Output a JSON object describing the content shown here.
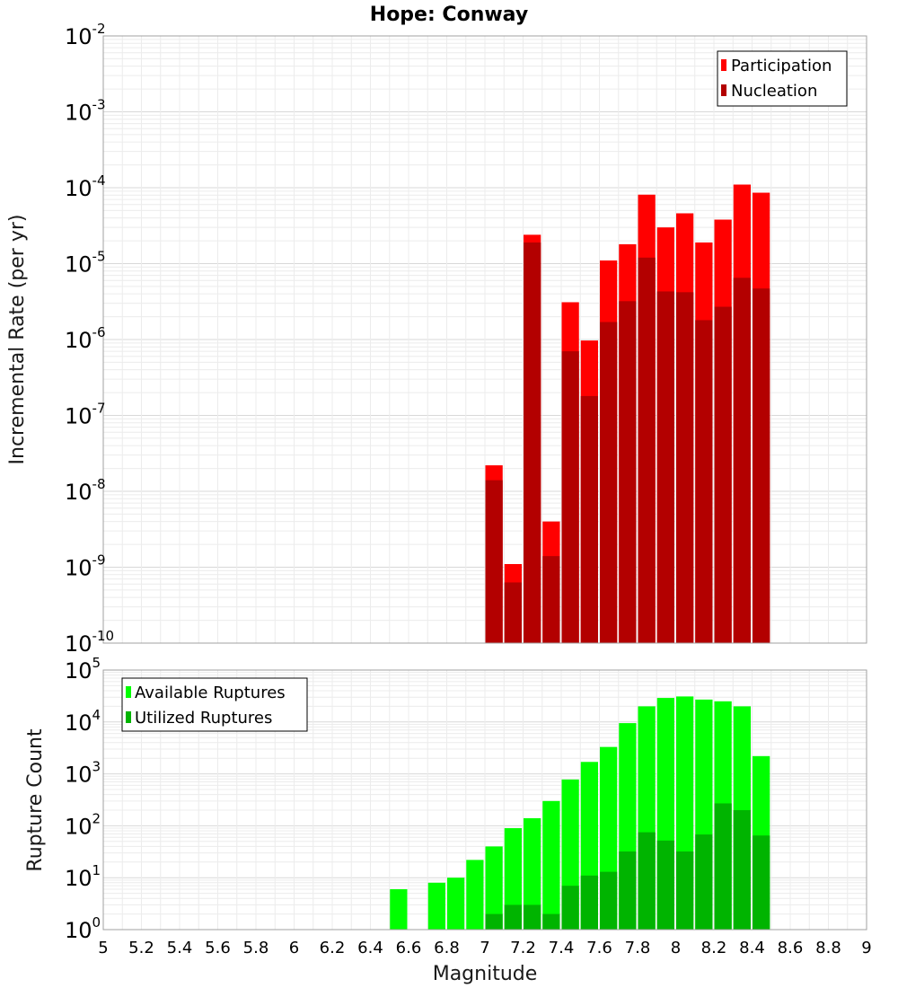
{
  "chart_data": [
    {
      "type": "bar",
      "title": "Hope: Conway",
      "xlabel": "",
      "ylabel": "Incremental Rate (per yr)",
      "xlim": [
        5,
        9
      ],
      "ylim": [
        1e-10,
        0.01
      ],
      "yscale": "log",
      "y_tick_exponents": [
        -2,
        -3,
        -4,
        -5,
        -6,
        -7,
        -8,
        -9,
        -10
      ],
      "bar_width": 0.1,
      "grid": true,
      "legend_position": "top-right",
      "x": [
        7.0,
        7.1,
        7.2,
        7.3,
        7.4,
        7.5,
        7.6,
        7.7,
        7.8,
        7.9,
        8.0,
        8.1,
        8.2,
        8.3,
        8.4
      ],
      "series": [
        {
          "name": "Participation",
          "color": "#ff0000",
          "values": [
            2.2e-08,
            1.1e-09,
            2.4e-05,
            4e-09,
            3.1e-06,
            9.7e-07,
            1.1e-05,
            1.8e-05,
            8.1e-05,
            3e-05,
            4.6e-05,
            1.9e-05,
            3.8e-05,
            0.00011,
            8.6e-05
          ]
        },
        {
          "name": "Nucleation",
          "color": "#b30000",
          "values": [
            1.4e-08,
            6.3e-10,
            1.9e-05,
            1.4e-09,
            7e-07,
            1.8e-07,
            1.7e-06,
            3.2e-06,
            1.2e-05,
            4.3e-06,
            4.2e-06,
            1.8e-06,
            2.7e-06,
            6.5e-06,
            4.7e-06
          ]
        }
      ]
    },
    {
      "type": "bar",
      "title": "",
      "xlabel": "Magnitude",
      "ylabel": "Rupture Count",
      "xlim": [
        5,
        9
      ],
      "ylim": [
        1,
        100000.0
      ],
      "yscale": "log",
      "y_tick_exponents": [
        5,
        4,
        3,
        2,
        1,
        0
      ],
      "x_ticks": [
        "5",
        "5.2",
        "5.4",
        "5.6",
        "5.8",
        "6",
        "6.2",
        "6.4",
        "6.6",
        "6.8",
        "7",
        "7.2",
        "7.4",
        "7.6",
        "7.8",
        "8",
        "8.2",
        "8.4",
        "8.6",
        "8.8",
        "9"
      ],
      "bar_width": 0.1,
      "grid": true,
      "legend_position": "top-left",
      "x": [
        6.5,
        6.6,
        6.7,
        6.8,
        6.9,
        7.0,
        7.1,
        7.2,
        7.3,
        7.4,
        7.5,
        7.6,
        7.7,
        7.8,
        7.9,
        8.0,
        8.1,
        8.2,
        8.3,
        8.4
      ],
      "series": [
        {
          "name": "Available Ruptures",
          "color": "#00ff00",
          "values": [
            6,
            0,
            8,
            10,
            22,
            40,
            90,
            140,
            300,
            780,
            1700,
            3300,
            9500,
            20000,
            29000,
            31000,
            27000,
            25000,
            20000,
            2200
          ]
        },
        {
          "name": "Utilized Ruptures",
          "color": "#00b400",
          "values": [
            0,
            0,
            0,
            0,
            0,
            2,
            3,
            3,
            2,
            7,
            11,
            13,
            32,
            75,
            52,
            32,
            68,
            270,
            200,
            65
          ]
        }
      ]
    }
  ]
}
